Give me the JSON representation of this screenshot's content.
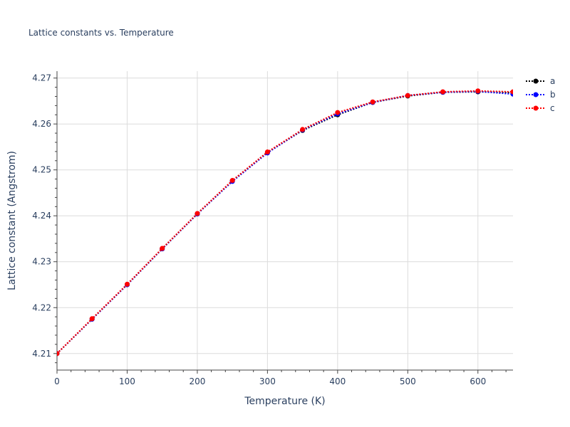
{
  "chart_data": {
    "type": "line",
    "title": "Lattice constants vs. Temperature",
    "xlabel": "Temperature (K)",
    "ylabel": "Lattice constant (Angstrom)",
    "xlim": [
      0,
      650
    ],
    "ylim": [
      4.2064,
      4.2715
    ],
    "x_ticks": [
      0,
      100,
      200,
      300,
      400,
      500,
      600
    ],
    "x_tick_labels": [
      "0",
      "100",
      "200",
      "300",
      "400",
      "500",
      "600"
    ],
    "y_ticks": [
      4.21,
      4.22,
      4.23,
      4.24,
      4.25,
      4.26,
      4.27
    ],
    "y_tick_labels": [
      "4.21",
      "4.22",
      "4.23",
      "4.24",
      "4.25",
      "4.26",
      "4.27"
    ],
    "grid": true,
    "legend_position": "top-right",
    "x": [
      0,
      50,
      100,
      150,
      200,
      250,
      300,
      350,
      400,
      450,
      500,
      550,
      600,
      650
    ],
    "series": [
      {
        "name": "a",
        "color": "#000000",
        "values": [
          4.21,
          4.2175,
          4.225,
          4.2328,
          4.2404,
          4.2476,
          4.2538,
          4.2586,
          4.262,
          4.2647,
          4.2661,
          4.2669,
          4.267,
          4.2668
        ]
      },
      {
        "name": "b",
        "color": "#0000ff",
        "values": [
          4.21,
          4.2175,
          4.225,
          4.2328,
          4.2404,
          4.2475,
          4.2537,
          4.2587,
          4.2622,
          4.2647,
          4.2662,
          4.2669,
          4.2671,
          4.2665
        ]
      },
      {
        "name": "c",
        "color": "#ff0000",
        "values": [
          4.21,
          4.2176,
          4.2251,
          4.2329,
          4.2405,
          4.2477,
          4.2539,
          4.2588,
          4.2625,
          4.2648,
          4.2662,
          4.267,
          4.2672,
          4.267
        ]
      }
    ]
  }
}
